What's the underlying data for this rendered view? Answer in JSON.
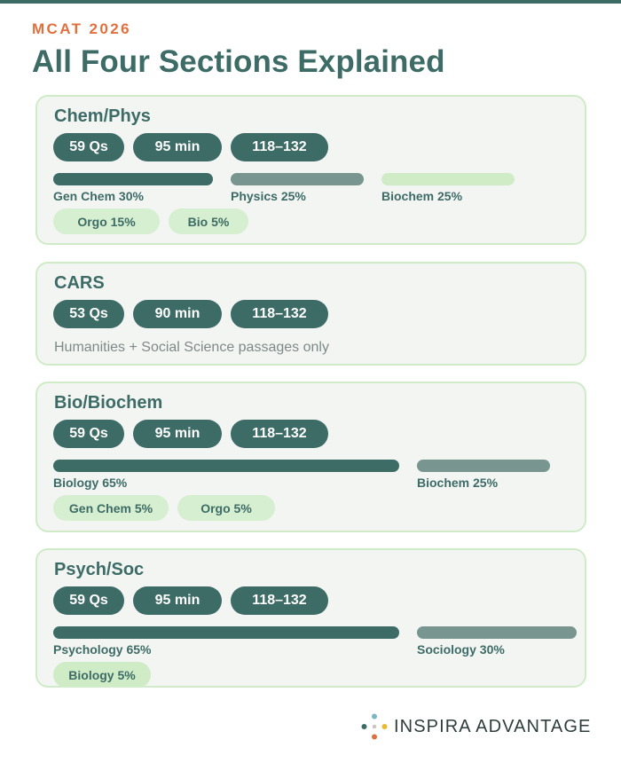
{
  "eyebrow": "MCAT 2026",
  "headline": "All Four Sections Explained",
  "colors": {
    "primary": "#3d6b66",
    "accent": "#e0703e",
    "bar_dark": "#3d6b66",
    "bar_medium": "#78958f",
    "bar_light": "#cfecc6",
    "tag_bg": "#d6efd0",
    "card_bg": "#f3f5f3",
    "card_border": "#cfebc8"
  },
  "sections": [
    {
      "title": "Chem/Phys",
      "stats": {
        "questions": "59 Qs",
        "time": "95 min",
        "score_range": "118–132"
      },
      "topics": [
        {
          "label": "Gen Chem 30%",
          "percent": 30
        },
        {
          "label": "Physics 25%",
          "percent": 25
        },
        {
          "label": "Biochem 25%",
          "percent": 25
        }
      ],
      "minor_topics": [
        "Orgo 15%",
        "Bio 5%"
      ]
    },
    {
      "title": "CARS",
      "stats": {
        "questions": "53 Qs",
        "time": "90 min",
        "score_range": "118–132"
      },
      "note": "Humanities + Social Science passages only"
    },
    {
      "title": "Bio/Biochem",
      "stats": {
        "questions": "59 Qs",
        "time": "95 min",
        "score_range": "118–132"
      },
      "topics": [
        {
          "label": "Biology 65%",
          "percent": 65
        },
        {
          "label": "Biochem 25%",
          "percent": 25
        }
      ],
      "minor_topics": [
        "Gen Chem 5%",
        "Orgo 5%"
      ]
    },
    {
      "title": "Psych/Soc",
      "stats": {
        "questions": "59 Qs",
        "time": "95 min",
        "score_range": "118–132"
      },
      "topics": [
        {
          "label": "Psychology 65%",
          "percent": 65
        },
        {
          "label": "Sociology 30%",
          "percent": 30
        }
      ],
      "minor_topics": [
        "Biology 5%"
      ]
    }
  ],
  "brand": {
    "name": "INSPIRA ADVANTAGE",
    "logo_icon": "dots-cross-logo"
  }
}
